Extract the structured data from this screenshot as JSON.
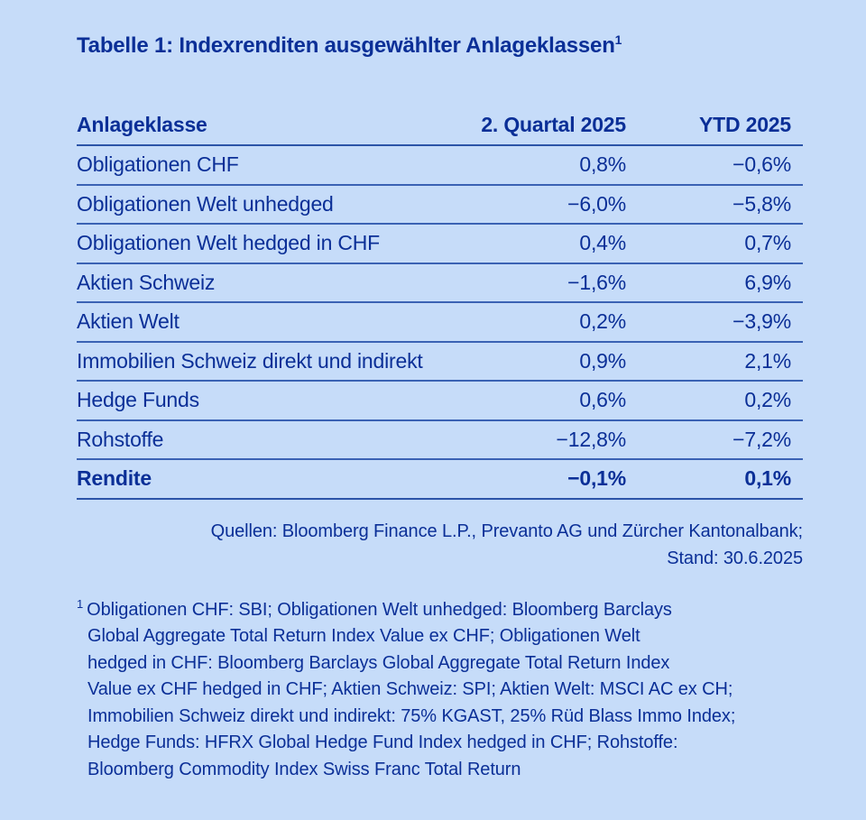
{
  "page": {
    "background_color": "#c6dcf9",
    "text_color": "#0b2f97",
    "rule_color": "#3a62b4"
  },
  "table": {
    "title": "Tabelle 1: Indexrenditen ausgewählter Anlageklassen",
    "title_superscript": "1",
    "columns": {
      "label": "Anlageklasse",
      "q2": "2. Quartal 2025",
      "ytd": "YTD 2025"
    },
    "rows": [
      {
        "label": "Obligationen CHF",
        "q2": "0,8%",
        "ytd": "−0,6%"
      },
      {
        "label": "Obligationen Welt unhedged",
        "q2": "−6,0%",
        "ytd": "−5,8%"
      },
      {
        "label": "Obligationen Welt hedged in CHF",
        "q2": "0,4%",
        "ytd": "0,7%"
      },
      {
        "label": "Aktien Schweiz",
        "q2": "−1,6%",
        "ytd": "6,9%"
      },
      {
        "label": "Aktien Welt",
        "q2": "0,2%",
        "ytd": "−3,9%"
      },
      {
        "label": "Immobilien Schweiz direkt und indirekt",
        "q2": "0,9%",
        "ytd": "2,1%"
      },
      {
        "label": "Hedge Funds",
        "q2": "0,6%",
        "ytd": "0,2%"
      },
      {
        "label": "Rohstoffe",
        "q2": "−12,8%",
        "ytd": "−7,2%"
      },
      {
        "label": "Rendite",
        "q2": "−0,1%",
        "ytd": "0,1%"
      }
    ],
    "sources_line1": "Quellen: Bloomberg Finance L.P., Prevanto AG und Zürcher Kantonalbank;",
    "sources_line2": "Stand: 30.6.2025"
  },
  "footnote": {
    "marker": "1",
    "lines": [
      "Obligationen CHF: SBI; Obligationen Welt unhedged: Bloomberg Barclays",
      "Global Aggregate Total Return Index Value ex CHF; Obligationen Welt",
      "hedged in CHF: Bloomberg Barclays Global Aggregate Total Return Index",
      "Value ex CHF hedged in CHF; Aktien Schweiz: SPI; Aktien Welt: MSCI AC ex CH;",
      "Immobilien Schweiz direkt und indirekt: 75% KGAST, 25% Rüd Blass Immo Index;",
      "Hedge Funds: HFRX Global Hedge Fund Index hedged in CHF; Rohstoffe:",
      "Bloomberg Commodity Index Swiss Franc Total Return"
    ]
  },
  "chart_data": {
    "type": "table",
    "title": "Tabelle 1: Indexrenditen ausgewählter Anlageklassen",
    "columns": [
      "Anlageklasse",
      "2. Quartal 2025",
      "YTD 2025"
    ],
    "rows": [
      [
        "Obligationen CHF",
        "0,8%",
        "−0,6%"
      ],
      [
        "Obligationen Welt unhedged",
        "−6,0%",
        "−5,8%"
      ],
      [
        "Obligationen Welt hedged in CHF",
        "0,4%",
        "0,7%"
      ],
      [
        "Aktien Schweiz",
        "−1,6%",
        "6,9%"
      ],
      [
        "Aktien Welt",
        "0,2%",
        "−3,9%"
      ],
      [
        "Immobilien Schweiz direkt und indirekt",
        "0,9%",
        "2,1%"
      ],
      [
        "Hedge Funds",
        "0,6%",
        "0,2%"
      ],
      [
        "Rohstoffe",
        "−12,8%",
        "−7,2%"
      ],
      [
        "Rendite",
        "−0,1%",
        "0,1%"
      ]
    ]
  }
}
